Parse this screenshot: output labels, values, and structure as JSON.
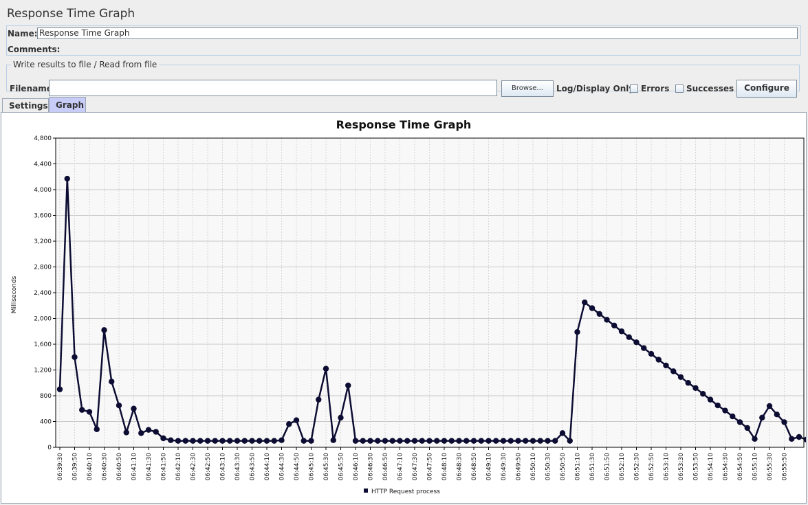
{
  "page": {
    "title": "Response Time Graph"
  },
  "name_field": {
    "label": "Name:",
    "value": "Response Time Graph"
  },
  "comments": {
    "label": "Comments:"
  },
  "file_section": {
    "legend": "Write results to file / Read from file",
    "filename_label": "Filename",
    "filename_value": "",
    "browse_label": "Browse...",
    "log_display_label": "Log/Display Only:",
    "errors_label": "Errors",
    "successes_label": "Successes",
    "configure_label": "Configure"
  },
  "tabs": [
    {
      "label": "Settings",
      "selected": false
    },
    {
      "label": "Graph",
      "selected": true
    }
  ],
  "colors": {
    "series": "#0d0d33",
    "selected_tab": "#c8cdf8",
    "border": "#b8cfe5"
  },
  "chart_data": {
    "type": "line",
    "title": "Response Time Graph",
    "ylabel": "Milliseconds",
    "xlabel": "",
    "ylim": [
      0,
      4800
    ],
    "yticks": [
      0,
      400,
      800,
      1200,
      1600,
      2000,
      2400,
      2800,
      3200,
      3600,
      4000,
      4400,
      4800
    ],
    "ytick_labels": [
      "0",
      "400",
      "800",
      "1,200",
      "1,600",
      "2,000",
      "2,400",
      "2,800",
      "3,200",
      "3,600",
      "4,000",
      "4,400",
      "4,800"
    ],
    "grid": true,
    "legend_position": "bottom",
    "x_tick_labels": [
      "06:39:30",
      "06:39:50",
      "06:40:10",
      "06:40:30",
      "06:40:50",
      "06:41:10",
      "06:41:30",
      "06:41:50",
      "06:42:10",
      "06:42:30",
      "06:42:50",
      "06:43:10",
      "06:43:30",
      "06:43:50",
      "06:44:10",
      "06:44:30",
      "06:44:50",
      "06:45:10",
      "06:45:30",
      "06:45:50",
      "06:46:10",
      "06:46:30",
      "06:46:50",
      "06:47:10",
      "06:47:30",
      "06:47:50",
      "06:48:10",
      "06:48:30",
      "06:48:50",
      "06:49:10",
      "06:49:30",
      "06:49:50",
      "06:50:10",
      "06:50:30",
      "06:50:50",
      "06:51:10",
      "06:51:30",
      "06:51:50",
      "06:52:10",
      "06:52:30",
      "06:52:50",
      "06:53:10",
      "06:53:30",
      "06:53:50",
      "06:54:10",
      "06:54:30",
      "06:54:50",
      "06:55:10",
      "06:55:30",
      "06:55:50"
    ],
    "series": [
      {
        "name": "HTTP Request process",
        "values": [
          900,
          4170,
          1400,
          580,
          550,
          280,
          1820,
          1020,
          650,
          230,
          600,
          220,
          270,
          240,
          140,
          110,
          100,
          100,
          100,
          100,
          100,
          100,
          100,
          100,
          100,
          100,
          100,
          100,
          100,
          100,
          110,
          360,
          420,
          100,
          100,
          740,
          1220,
          110,
          460,
          960,
          100,
          100,
          100,
          100,
          100,
          100,
          100,
          100,
          100,
          100,
          100,
          100,
          100,
          100,
          100,
          100,
          100,
          100,
          100,
          100,
          100,
          100,
          100,
          100,
          100,
          100,
          100,
          100,
          220,
          100,
          1790,
          2250,
          2160,
          2070,
          1980,
          1890,
          1800,
          1710,
          1630,
          1540,
          1450,
          1360,
          1270,
          1180,
          1090,
          1000,
          920,
          830,
          740,
          650,
          570,
          480,
          390,
          300,
          130,
          460,
          640,
          510,
          390,
          130,
          160,
          120
        ]
      }
    ]
  }
}
